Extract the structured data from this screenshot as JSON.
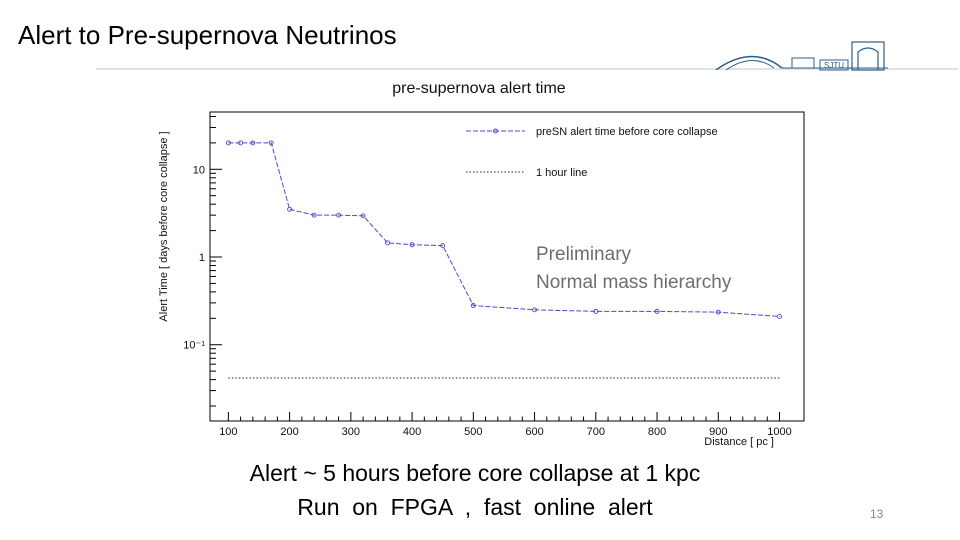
{
  "slide": {
    "title": "Alert to Pre-supernova Neutrinos",
    "annotations": [
      "Preliminary",
      "Normal mass hierarchy"
    ],
    "caption_lines": [
      "Alert ~ 5 hours before core collapse at 1 kpc",
      "Run  on  FPGA  ,  fast  online  alert"
    ],
    "page_number": "13",
    "logo_text": "SJTU"
  },
  "chart_data": {
    "type": "line",
    "title": "pre-supernova alert time",
    "xlabel": "Distance [ pc ]",
    "ylabel": "Alert Time [ days before core collapse ]",
    "xlim": [
      70,
      1040
    ],
    "ylim": [
      0.0135,
      45
    ],
    "y_scale": "log",
    "x_ticks": [
      100,
      200,
      300,
      400,
      500,
      600,
      700,
      800,
      900,
      1000
    ],
    "y_ticks": [
      {
        "value": 10,
        "label": "10"
      },
      {
        "value": 1,
        "label": "1"
      },
      {
        "value": 0.1,
        "label": "10⁻¹"
      }
    ],
    "legend_position": "top-right",
    "series": [
      {
        "name": "preSN alert time before core collapse",
        "color": "#4a4acc",
        "style": "dashed-with-circles",
        "x": [
          100,
          120,
          140,
          170,
          200,
          240,
          280,
          320,
          360,
          400,
          450,
          500,
          600,
          700,
          800,
          900,
          1000
        ],
        "y": [
          20,
          20,
          20,
          20,
          3.5,
          3.0,
          3.0,
          2.95,
          1.45,
          1.38,
          1.35,
          0.28,
          0.25,
          0.24,
          0.24,
          0.235,
          0.21
        ]
      },
      {
        "name": "1 hour line",
        "color": "#222222",
        "style": "dotted",
        "x": [
          100,
          1000
        ],
        "y": [
          0.0417,
          0.0417
        ]
      }
    ]
  }
}
